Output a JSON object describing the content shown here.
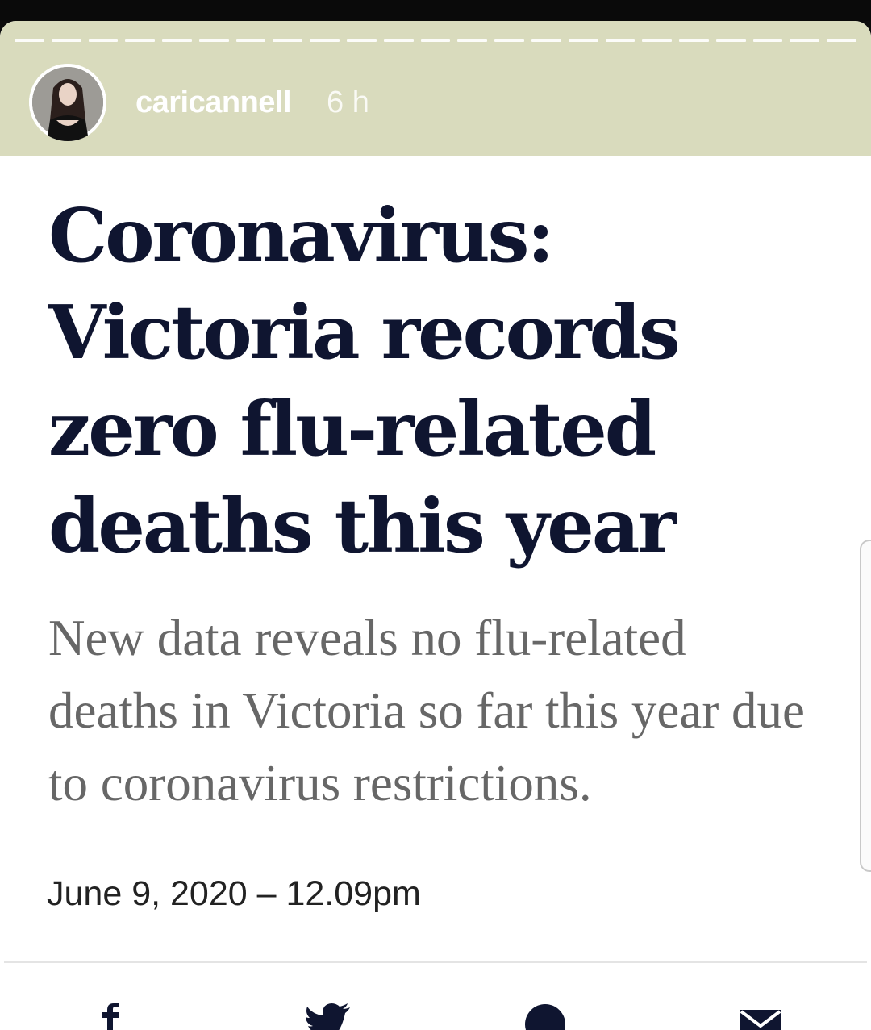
{
  "story": {
    "username": "caricannell",
    "time": "6 h",
    "segments": 23
  },
  "article": {
    "headline": "Coronavirus: Victoria records zero flu-related deaths this year",
    "subheadline": "New data reveals no flu-related deaths in Victoria so far this year due to coronavirus restrictions.",
    "dateline": "June 9, 2020 – 12.09pm"
  },
  "share_icons": [
    "facebook-icon",
    "twitter-icon",
    "whatsapp-icon",
    "email-icon"
  ],
  "colors": {
    "header_bg": "#d9dbbd",
    "headline": "#0f1530",
    "subheadline": "#676767"
  }
}
